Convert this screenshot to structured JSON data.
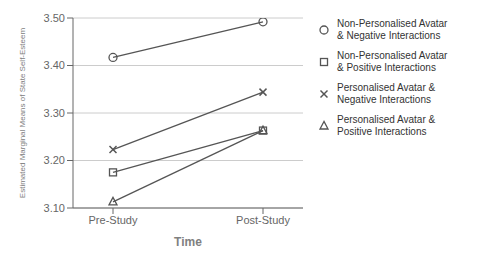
{
  "chart_data": {
    "type": "line",
    "categories": [
      "Pre-Study",
      "Post-Study"
    ],
    "series": [
      {
        "name": "Non-Personalised Avatar\n& Negative Interactions",
        "color": "#555555",
        "marker": "circle",
        "line_style": "solid",
        "values": [
          3.417,
          3.492
        ]
      },
      {
        "name": "Non-Personalised Avatar\n& Positive Interactions",
        "color": "#555555",
        "marker": "square",
        "line_style": "solid",
        "values": [
          3.175,
          3.263
        ]
      },
      {
        "name": "Personalised Avatar &\nNegative Interactions",
        "color": "#555555",
        "marker": "x",
        "line_style": "solid",
        "values": [
          3.223,
          3.344
        ]
      },
      {
        "name": "Personalised Avatar &\nPositive Interactions",
        "color": "#555555",
        "marker": "triangle",
        "line_style": "solid",
        "values": [
          3.113,
          3.263
        ]
      }
    ],
    "xlabel": "Time",
    "ylabel": "Estimated Marginal Means of State Self-Esteem",
    "ylim": [
      3.1,
      3.5
    ],
    "yticks": [
      {
        "value": 3.1,
        "label": "3.10"
      },
      {
        "value": 3.2,
        "label": "3.20"
      },
      {
        "value": 3.3,
        "label": "3.30"
      },
      {
        "value": 3.4,
        "label": "3.40"
      },
      {
        "value": 3.5,
        "label": "3.50"
      }
    ],
    "grid": true,
    "legend": "right"
  }
}
